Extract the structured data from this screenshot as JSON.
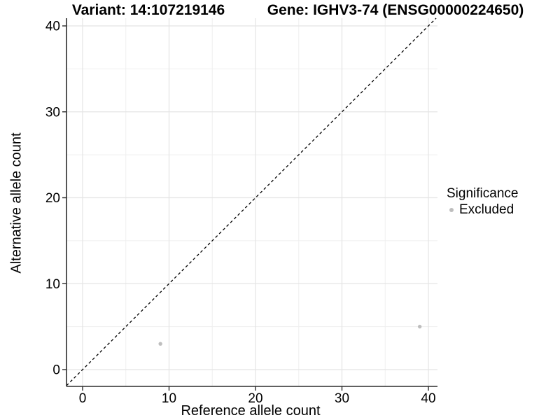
{
  "titles": {
    "variant": "Variant: 14:107219146",
    "gene": "Gene: IGHV3-74 (ENSG00000224650)"
  },
  "chart_data": {
    "type": "scatter",
    "title_left": "Variant: 14:107219146",
    "title_right": "Gene: IGHV3-74 (ENSG00000224650)",
    "xlabel": "Reference allele count",
    "ylabel": "Alternative allele count",
    "xlim": [
      -2,
      41
    ],
    "ylim": [
      -2,
      41
    ],
    "x_ticks": [
      0,
      10,
      20,
      30,
      40
    ],
    "y_ticks": [
      0,
      10,
      20,
      30,
      40
    ],
    "x_minor_ticks": [
      5,
      15,
      25,
      35
    ],
    "y_minor_ticks": [
      5,
      15,
      25,
      35
    ],
    "grid": true,
    "identity_line": {
      "shown": true,
      "style": "dashed",
      "slope": 1,
      "intercept": 0
    },
    "series": [
      {
        "name": "Excluded",
        "color": "#bebebe",
        "points": [
          {
            "x": 9,
            "y": 3
          },
          {
            "x": 39,
            "y": 5
          }
        ]
      }
    ],
    "legend": {
      "title": "Significance",
      "position": "right",
      "entries": [
        "Excluded"
      ]
    }
  },
  "colors": {
    "background": "#ffffff",
    "grid_major": "#e4e4e4",
    "grid_minor": "#efefef",
    "axis": "#2b2b2b",
    "text": "#000000",
    "point": "#bebebe",
    "dashed_line": "#000000"
  }
}
